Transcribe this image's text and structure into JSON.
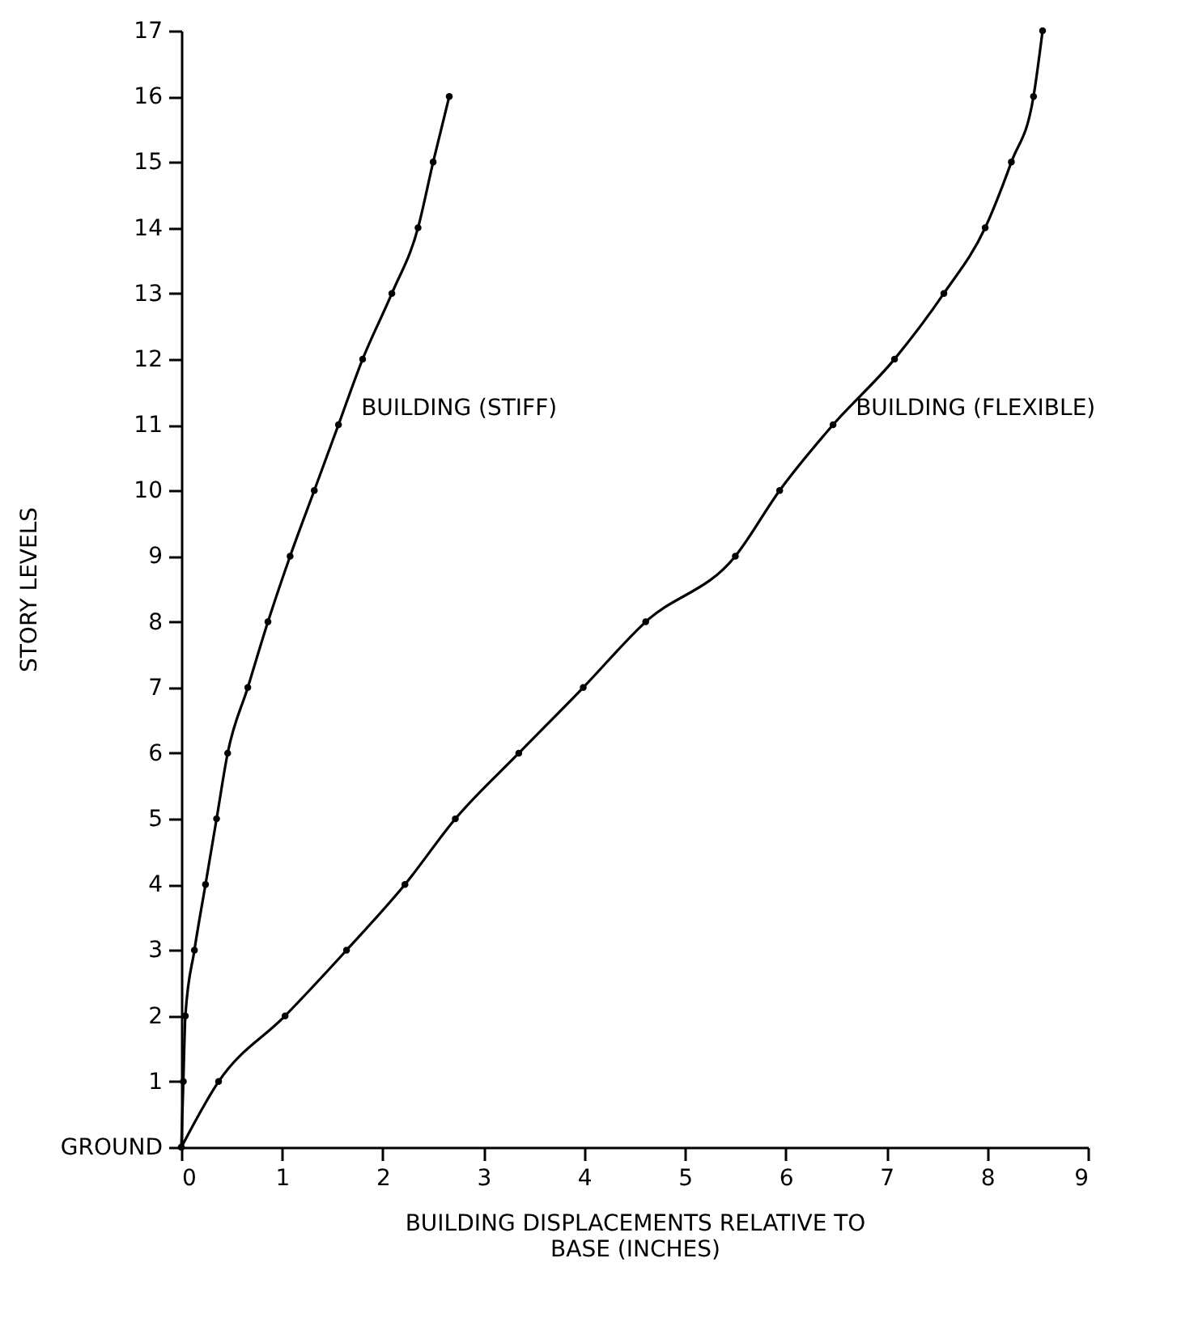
{
  "chart_data": {
    "type": "line",
    "xlabel": "BUILDING DISPLACEMENTS  RELATIVE TO\nBASE (INCHES)",
    "ylabel": "STORY LEVELS",
    "series": [
      {
        "color": "#000000",
        "x": [
          0,
          0.02,
          0.04,
          0.13,
          0.24,
          0.35,
          0.46,
          0.66,
          0.86,
          1.08,
          1.32,
          1.56,
          1.8,
          2.09,
          2.35,
          2.5,
          2.66
        ],
        "values": [
          0,
          1,
          2,
          3,
          4,
          5,
          6,
          7,
          8,
          9,
          10,
          11,
          12,
          13,
          14,
          15,
          16
        ]
      },
      {
        "color": "#000000",
        "x": [
          0,
          0.37,
          1.03,
          1.64,
          2.22,
          2.72,
          3.35,
          3.99,
          4.61,
          5.5,
          5.94,
          6.47,
          7.08,
          7.57,
          7.98,
          8.24,
          8.46,
          8.55
        ],
        "values": [
          0,
          1,
          2,
          3,
          4,
          5,
          6,
          7,
          8,
          9,
          10,
          11,
          12,
          13,
          14,
          15,
          16,
          17
        ]
      }
    ],
    "xlim": [
      0,
      9
    ],
    "xticks": [
      0,
      1,
      2,
      3,
      4,
      5,
      6,
      7,
      8,
      9
    ],
    "ylim": [
      0,
      17
    ],
    "yticks": [
      {
        "value": 0,
        "label": "GROUND"
      },
      1,
      2,
      3,
      4,
      5,
      6,
      7,
      8,
      9,
      10,
      11,
      12,
      13,
      14,
      15,
      16,
      17
    ],
    "annotations": [
      {
        "text": "BUILDING (STIFF)",
        "x": 1.56,
        "y": 11
      },
      {
        "text": "BUILDING (FLEXIBLE)",
        "x": 6.47,
        "y": 11
      }
    ],
    "marker": "circle",
    "line_style": "solid",
    "grid": false
  }
}
